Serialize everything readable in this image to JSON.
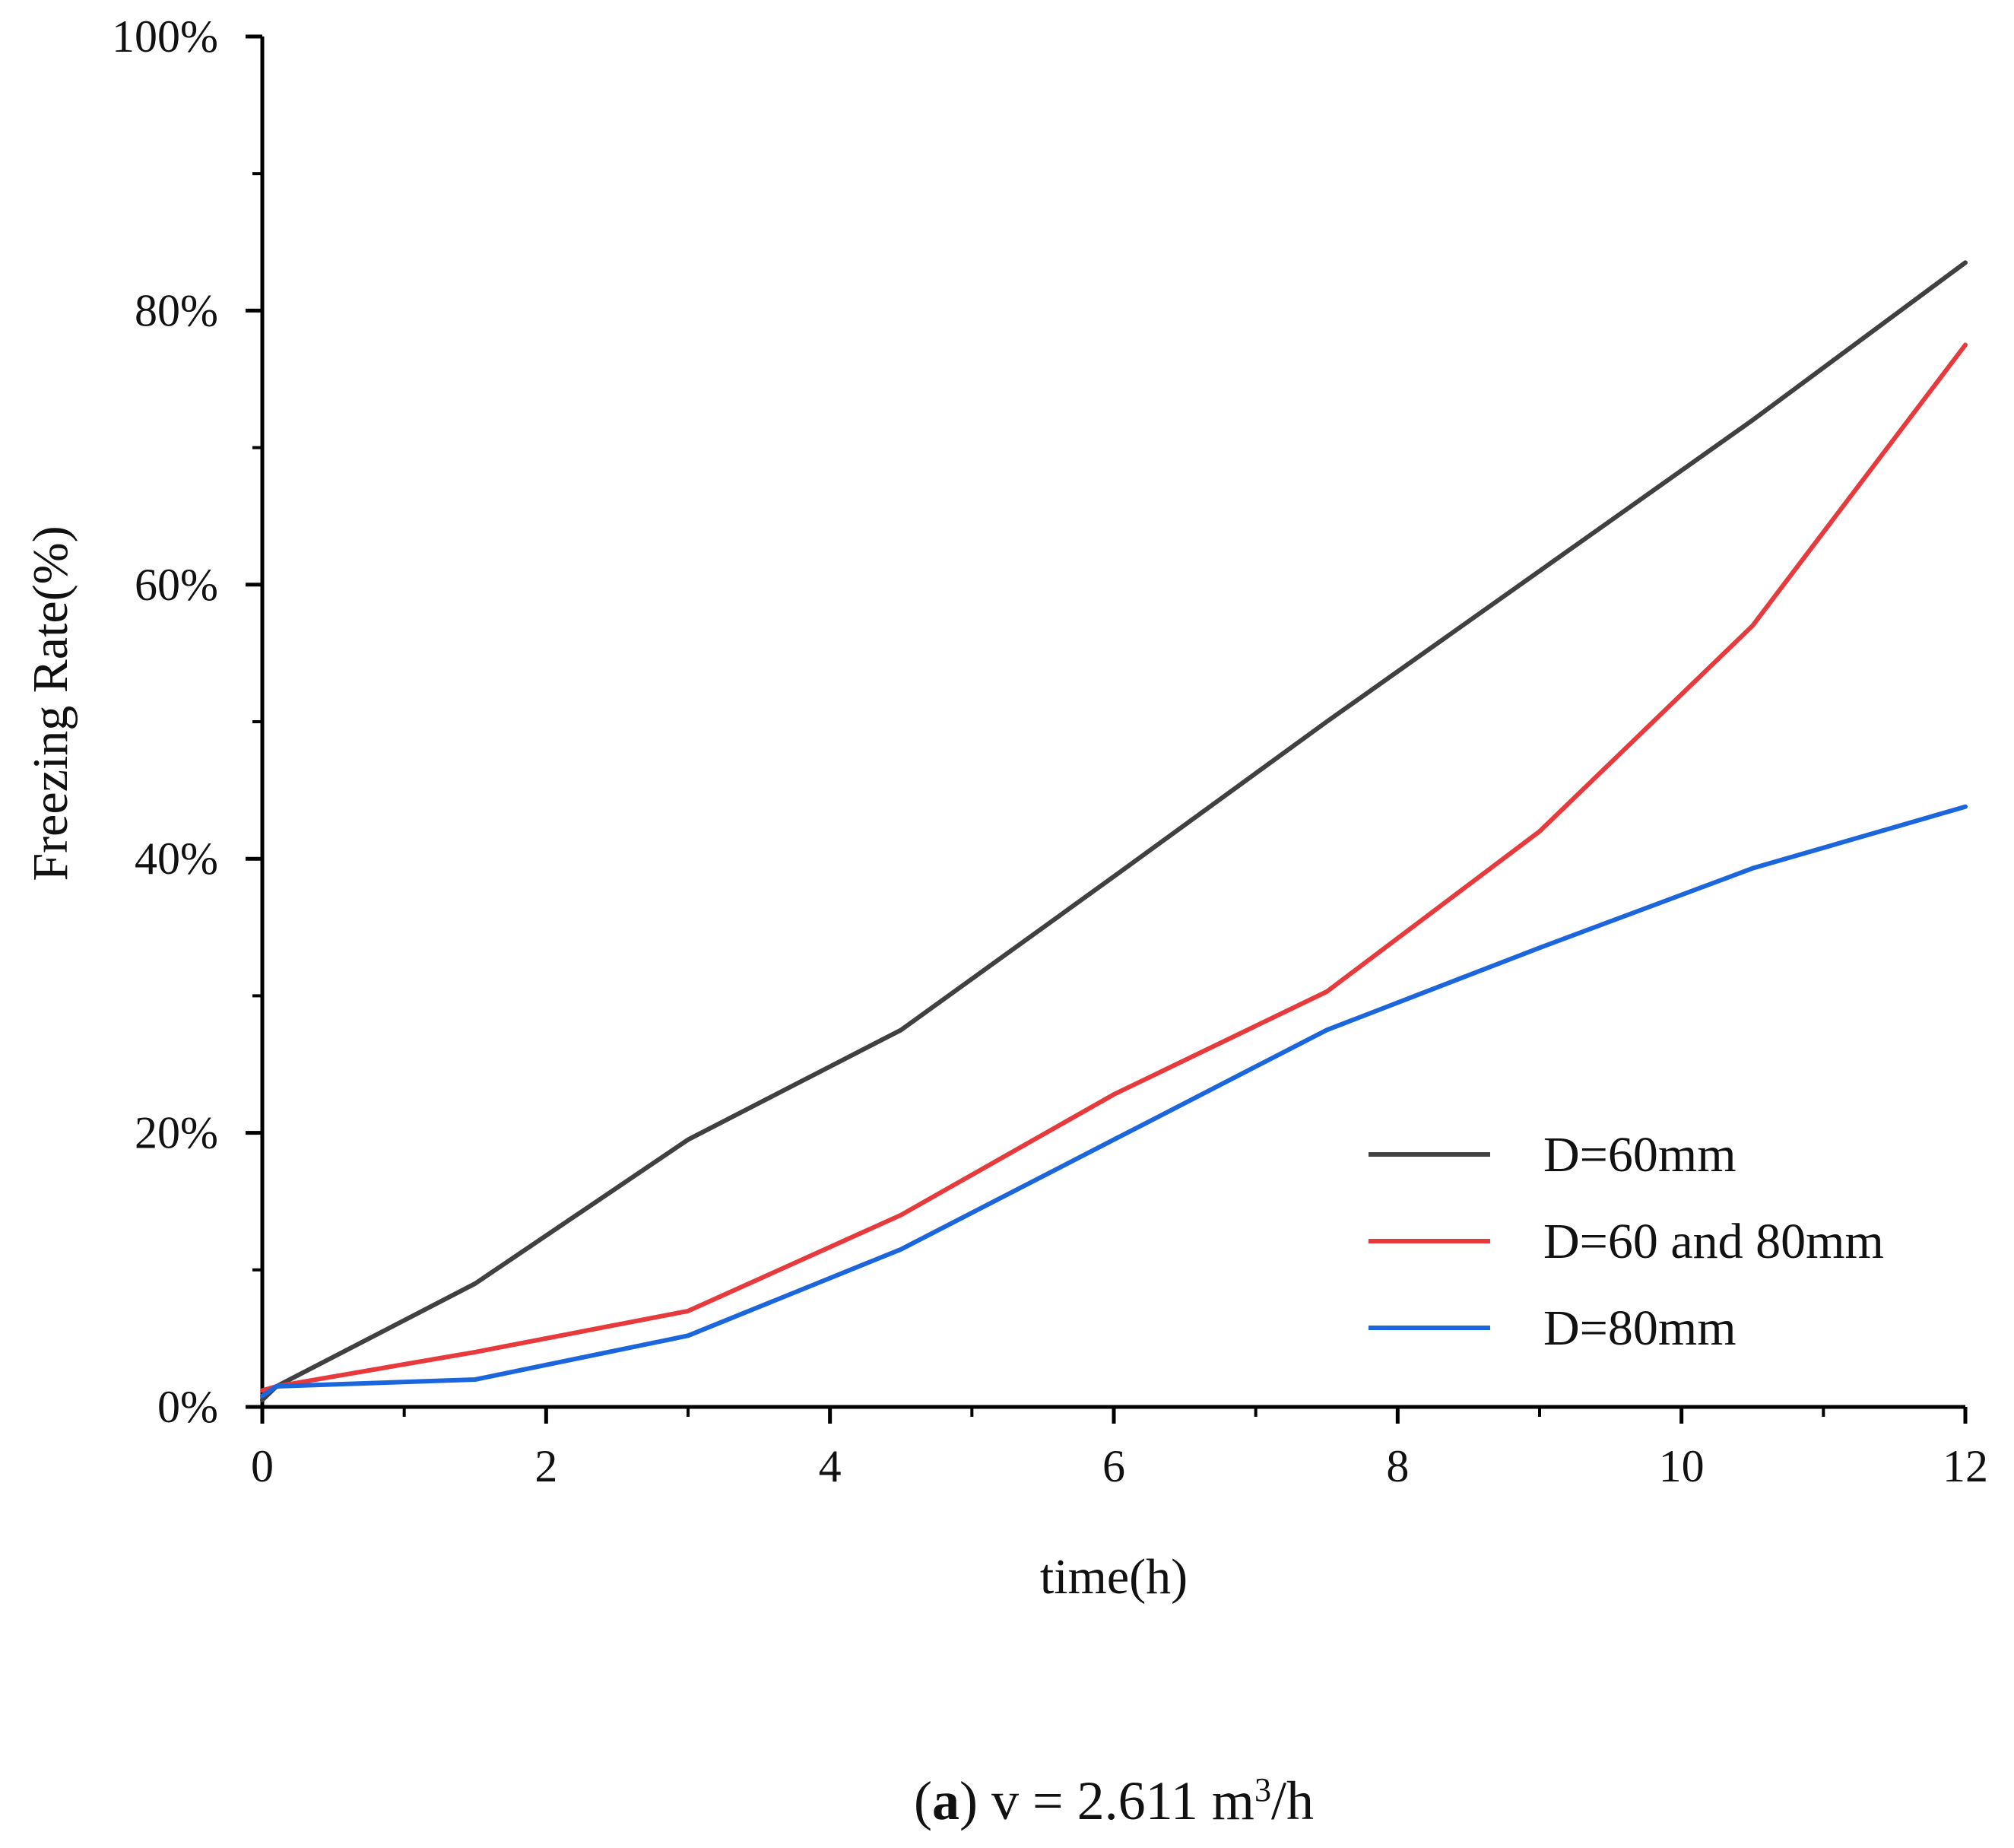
{
  "chart_data": {
    "type": "line",
    "title": "",
    "xlabel": "time(h)",
    "ylabel": "Freezing Rate(%)",
    "xlim": [
      0,
      12
    ],
    "ylim": [
      0,
      100
    ],
    "x_ticks": [
      0,
      2,
      4,
      6,
      8,
      10,
      12
    ],
    "x_tick_labels": [
      "0",
      "2",
      "4",
      "6",
      "8",
      "10",
      "12"
    ],
    "y_ticks": [
      0,
      20,
      40,
      60,
      80,
      100
    ],
    "y_tick_labels": [
      "0%",
      "20%",
      "40%",
      "60%",
      "80%",
      "100%"
    ],
    "grid": false,
    "legend_position": "bottom-right",
    "series": [
      {
        "name": "D=60mm",
        "color": "#404040",
        "x": [
          0,
          0.1,
          1.5,
          3,
          4.5,
          6,
          7.5,
          9,
          10.5,
          12
        ],
        "y": [
          0.5,
          1.5,
          9,
          19.5,
          27.5,
          38.7,
          50,
          61,
          72,
          83.5
        ]
      },
      {
        "name": "D=60 and 80mm",
        "color": "#e8393c",
        "x": [
          0,
          0.1,
          1.5,
          3,
          4.5,
          6,
          7.5,
          9,
          10.5,
          12
        ],
        "y": [
          1.2,
          1.5,
          4,
          7,
          14,
          22.8,
          30.3,
          42,
          57,
          77.5
        ]
      },
      {
        "name": "D=80mm",
        "color": "#1c66dd",
        "x": [
          0,
          0.1,
          1.5,
          3,
          4.5,
          6,
          7.5,
          9,
          10.5,
          12
        ],
        "y": [
          0.8,
          1.5,
          2,
          5.2,
          11.5,
          19.5,
          27.5,
          33.5,
          39.3,
          43.8
        ]
      }
    ],
    "caption": {
      "label": "a",
      "text_before": "v = 2.611 m",
      "superscript": "3",
      "text_after": "/h"
    }
  }
}
